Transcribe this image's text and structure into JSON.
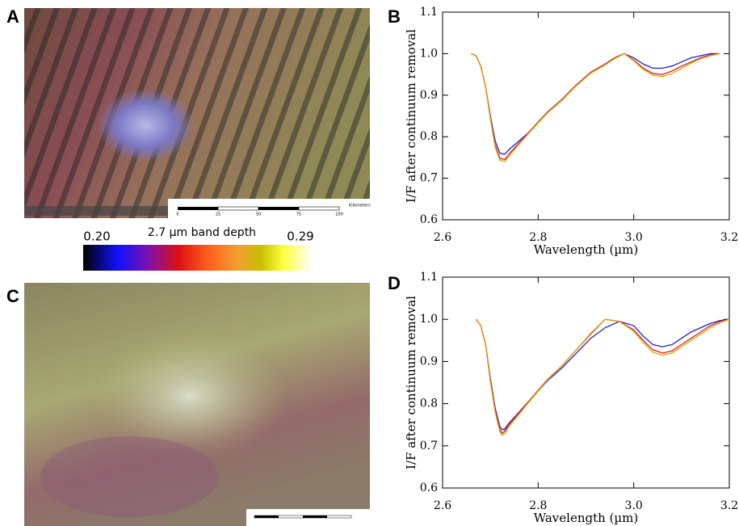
{
  "panel_labels": [
    "A",
    "B",
    "C",
    "D"
  ],
  "colorbar": {
    "label": "2.7 µm band depth",
    "min_label": "0.20",
    "max_label": "0.29"
  },
  "scale_bar": {
    "unit": "Kilometers",
    "ticks": [
      0,
      25,
      50,
      75,
      100
    ]
  },
  "chart_data": [
    {
      "type": "line",
      "x_label": "Wavelength (µm)",
      "y_label": "I/F after continuum removal",
      "x": [
        2.66,
        2.67,
        2.68,
        2.69,
        2.7,
        2.71,
        2.72,
        2.73,
        2.74,
        2.76,
        2.78,
        2.8,
        2.82,
        2.85,
        2.88,
        2.91,
        2.94,
        2.96,
        2.98,
        3.0,
        3.02,
        3.04,
        3.06,
        3.08,
        3.1,
        3.12,
        3.14,
        3.16,
        3.18
      ],
      "series": [
        {
          "color": "#1f1fd6",
          "values": [
            1.0,
            0.995,
            0.97,
            0.92,
            0.85,
            0.79,
            0.76,
            0.758,
            0.77,
            0.79,
            0.81,
            0.835,
            0.86,
            0.89,
            0.925,
            0.955,
            0.975,
            0.99,
            1.0,
            0.99,
            0.975,
            0.965,
            0.965,
            0.97,
            0.98,
            0.99,
            0.995,
            1.0,
            1.0
          ]
        },
        {
          "color": "#d62020",
          "values": [
            1.0,
            0.995,
            0.97,
            0.92,
            0.845,
            0.78,
            0.748,
            0.745,
            0.76,
            0.785,
            0.81,
            0.835,
            0.86,
            0.89,
            0.925,
            0.955,
            0.975,
            0.99,
            1.0,
            0.985,
            0.965,
            0.952,
            0.95,
            0.958,
            0.97,
            0.98,
            0.99,
            0.997,
            1.0
          ]
        },
        {
          "color": "#e0a000",
          "values": [
            1.0,
            0.995,
            0.97,
            0.92,
            0.843,
            0.775,
            0.743,
            0.74,
            0.755,
            0.782,
            0.808,
            0.833,
            0.858,
            0.888,
            0.923,
            0.953,
            0.973,
            0.988,
            1.0,
            0.983,
            0.962,
            0.948,
            0.945,
            0.952,
            0.965,
            0.977,
            0.988,
            0.995,
            1.0
          ]
        }
      ],
      "xlim": [
        2.6,
        3.2
      ],
      "ylim": [
        0.6,
        1.1
      ],
      "xticks": [
        2.6,
        2.8,
        {
          "value": 3,
          "label": "3.0"
        },
        3.2
      ],
      "yticks": [
        0.6,
        0.7,
        0.8,
        0.9,
        {
          "value": 1,
          "label": "1.0"
        },
        1.1
      ]
    },
    {
      "type": "line",
      "x_label": "Wavelength (µm)",
      "y_label": "I/F after continuum removal",
      "x": [
        2.67,
        2.68,
        2.69,
        2.7,
        2.71,
        2.72,
        2.725,
        2.73,
        2.74,
        2.76,
        2.78,
        2.8,
        2.82,
        2.85,
        2.88,
        2.91,
        2.94,
        2.97,
        3.0,
        3.02,
        3.04,
        3.06,
        3.08,
        3.1,
        3.12,
        3.14,
        3.16,
        3.18,
        3.2
      ],
      "series": [
        {
          "color": "#1f1fd6",
          "values": [
            1.0,
            0.985,
            0.94,
            0.86,
            0.79,
            0.745,
            0.738,
            0.74,
            0.755,
            0.78,
            0.805,
            0.83,
            0.855,
            0.885,
            0.92,
            0.955,
            0.98,
            0.995,
            0.985,
            0.96,
            0.94,
            0.935,
            0.94,
            0.955,
            0.97,
            0.98,
            0.99,
            0.997,
            1.0
          ]
        },
        {
          "color": "#d62020",
          "values": [
            1.0,
            0.985,
            0.94,
            0.855,
            0.785,
            0.738,
            0.73,
            0.735,
            0.752,
            0.778,
            0.805,
            0.832,
            0.858,
            0.89,
            0.928,
            0.965,
            1.0,
            0.995,
            0.975,
            0.95,
            0.928,
            0.92,
            0.925,
            0.94,
            0.955,
            0.97,
            0.985,
            0.995,
            1.0
          ]
        },
        {
          "color": "#e0a000",
          "values": [
            1.0,
            0.985,
            0.94,
            0.852,
            0.78,
            0.733,
            0.725,
            0.73,
            0.748,
            0.775,
            0.803,
            0.83,
            0.857,
            0.89,
            0.928,
            0.967,
            1.0,
            0.995,
            0.972,
            0.945,
            0.922,
            0.915,
            0.92,
            0.935,
            0.95,
            0.965,
            0.98,
            0.992,
            1.0
          ]
        }
      ],
      "xlim": [
        2.6,
        3.2
      ],
      "ylim": [
        0.6,
        1.1
      ],
      "xticks": [
        2.6,
        2.8,
        {
          "value": 3,
          "label": "3.0"
        },
        3.2
      ],
      "yticks": [
        0.6,
        0.7,
        0.8,
        0.9,
        {
          "value": 1,
          "label": "1.0"
        },
        1.1
      ]
    }
  ]
}
